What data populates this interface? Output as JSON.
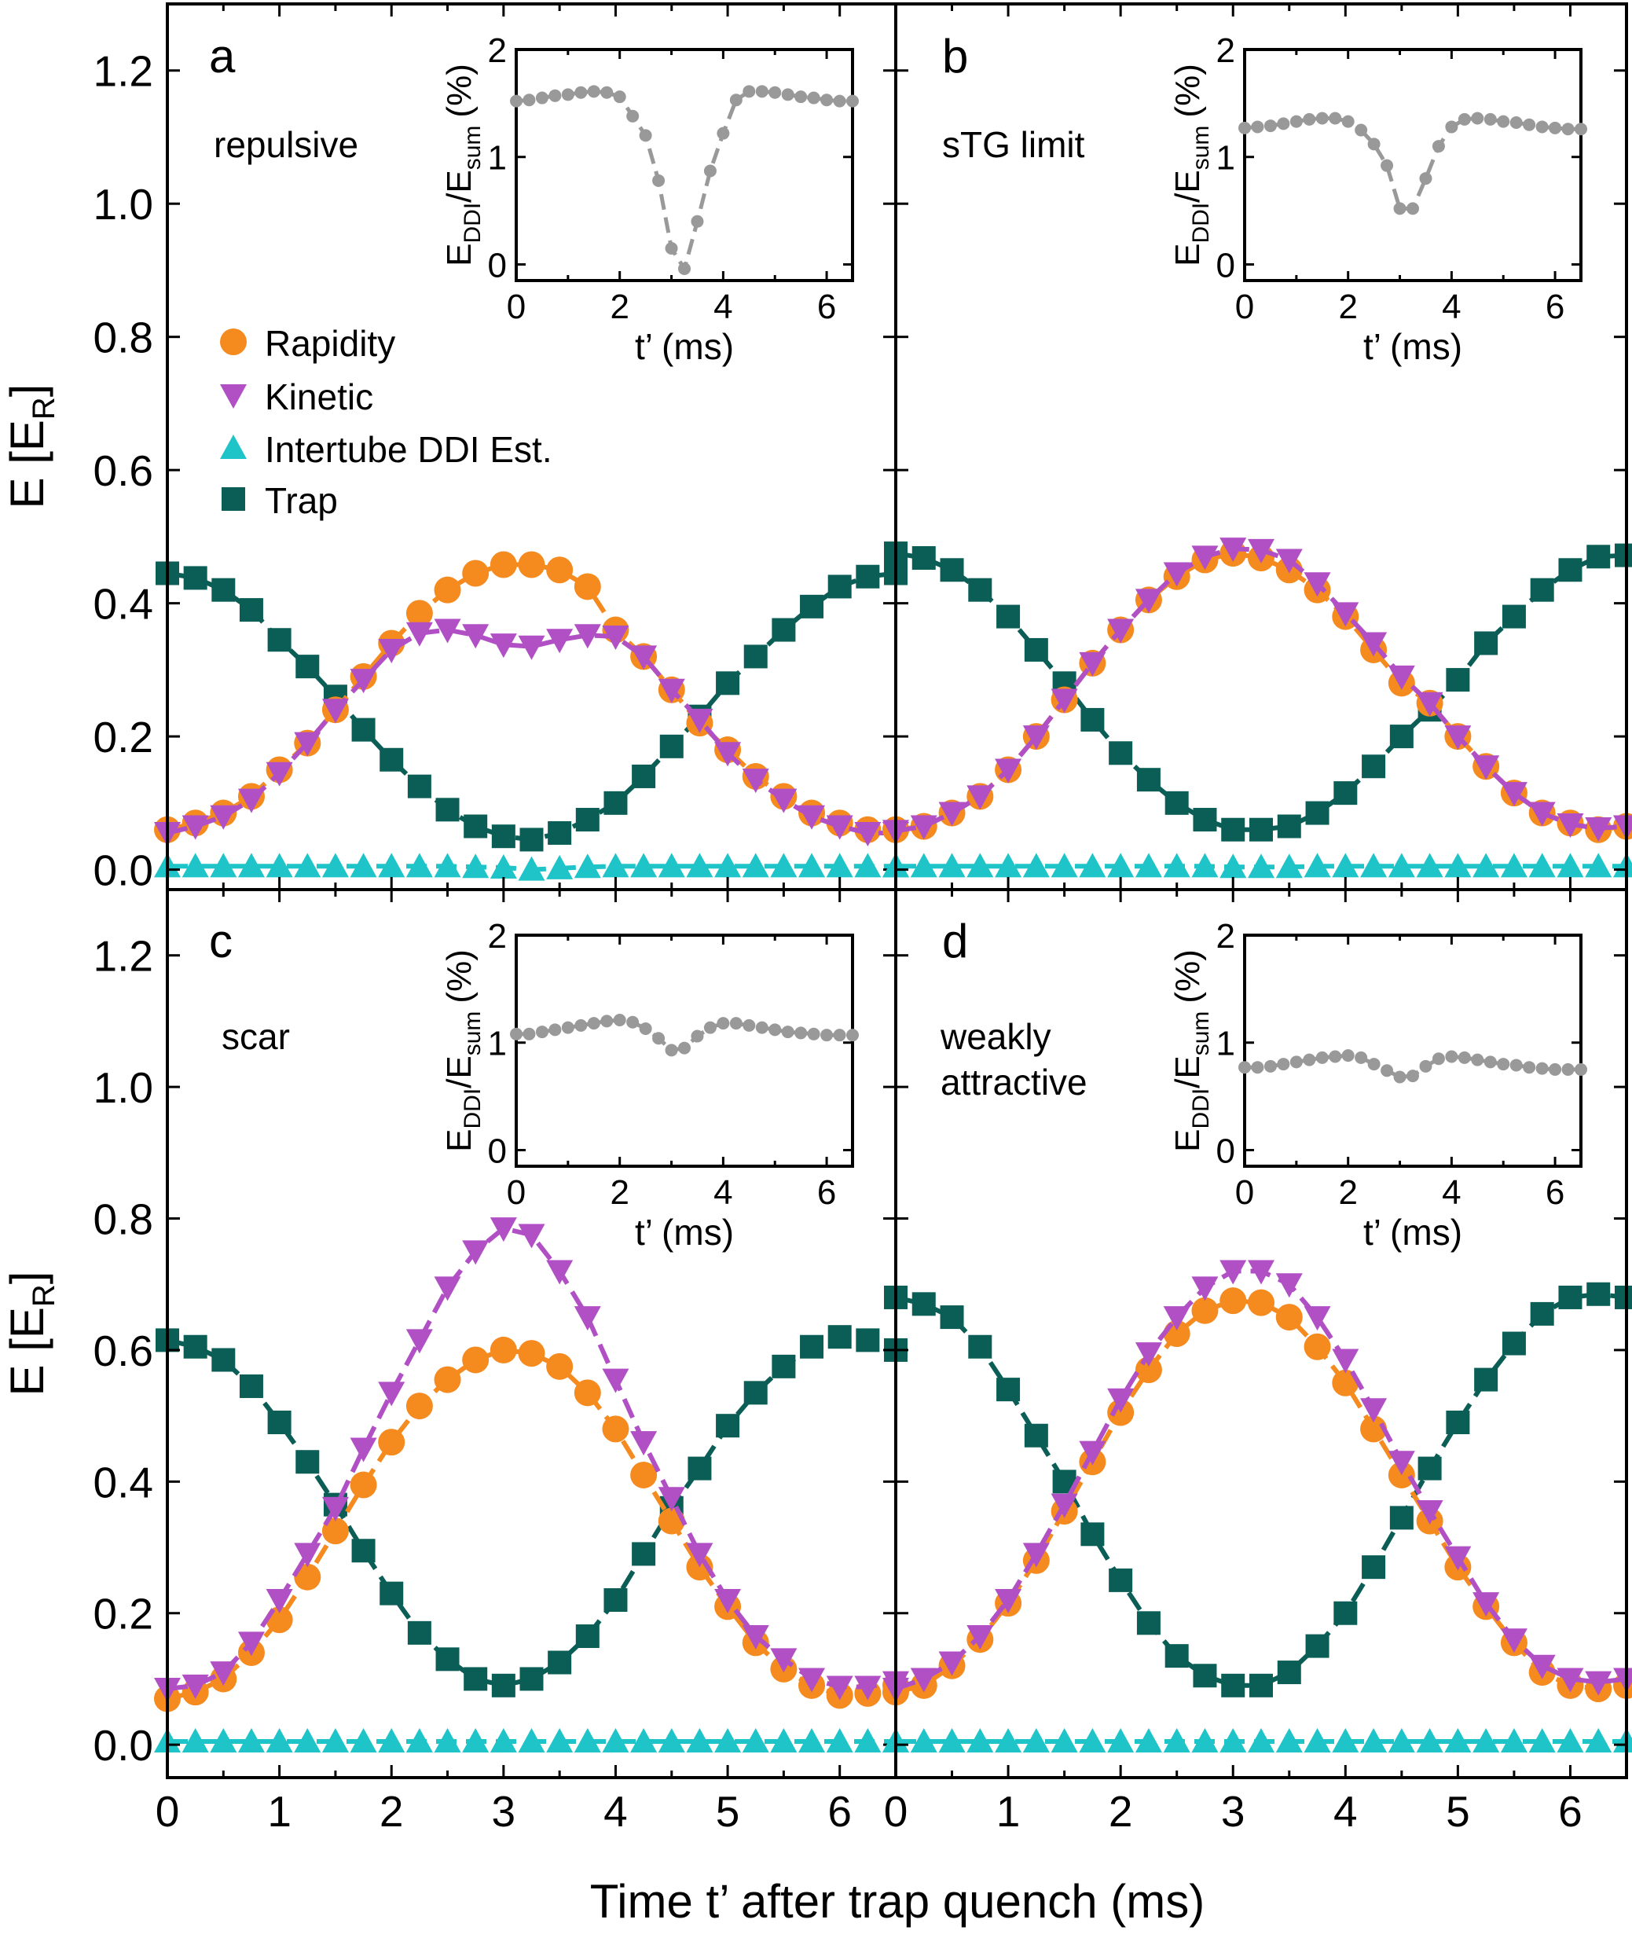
{
  "figure": {
    "xlabel": "Time t’ after trap quench (ms)",
    "ylabel_main": "E",
    "ylabel_unit": "E",
    "ylabel_unit_sub": "R",
    "inset_ylabel_num": "E",
    "inset_ylabel_num_sub": "DDI",
    "inset_ylabel_den": "/E",
    "inset_ylabel_den_sub": "sum",
    "inset_ylabel_pct": "(%)",
    "inset_xlabel": "t’ (ms)"
  },
  "colors": {
    "rapidity": "#f58a1f",
    "kinetic": "#b14fc5",
    "ddi": "#1fc4c8",
    "trap": "#0b5e56",
    "inset": "#999999"
  },
  "legend": [
    {
      "key": "rapidity",
      "label": "Rapidity",
      "marker": "circle"
    },
    {
      "key": "kinetic",
      "label": "Kinetic",
      "marker": "triangle-down"
    },
    {
      "key": "ddi",
      "label": "Intertube DDI Est.",
      "marker": "triangle-up"
    },
    {
      "key": "trap",
      "label": "Trap",
      "marker": "square"
    }
  ],
  "chart_data": [
    {
      "type": "line",
      "panel": "a",
      "title": "repulsive",
      "xlim": [
        0,
        6.5
      ],
      "ylim": [
        -0.03,
        1.3
      ],
      "xticks": [
        0,
        1,
        2,
        3,
        4,
        5,
        6
      ],
      "yticks": [
        "0.0",
        "0.2",
        "0.4",
        "0.6",
        "0.8",
        "1.0",
        "1.2"
      ],
      "x": [
        0,
        0.25,
        0.5,
        0.75,
        1.0,
        1.25,
        1.5,
        1.75,
        2.0,
        2.25,
        2.5,
        2.75,
        3.0,
        3.25,
        3.5,
        3.75,
        4.0,
        4.25,
        4.5,
        4.75,
        5.0,
        5.25,
        5.5,
        5.75,
        6.0,
        6.25,
        6.5
      ],
      "series": [
        {
          "name": "Rapidity",
          "key": "rapidity",
          "values": [
            0.06,
            0.07,
            0.085,
            0.11,
            0.15,
            0.19,
            0.24,
            0.29,
            0.34,
            0.385,
            0.42,
            0.445,
            0.458,
            0.458,
            0.45,
            0.425,
            0.36,
            0.32,
            0.27,
            0.22,
            0.18,
            0.14,
            0.11,
            0.085,
            0.07,
            0.06,
            0.06
          ]
        },
        {
          "name": "Kinetic",
          "key": "kinetic",
          "values": [
            0.055,
            0.065,
            0.08,
            0.105,
            0.145,
            0.19,
            0.24,
            0.285,
            0.33,
            0.355,
            0.36,
            0.352,
            0.338,
            0.335,
            0.345,
            0.352,
            0.35,
            0.32,
            0.27,
            0.225,
            0.175,
            0.135,
            0.105,
            0.08,
            0.065,
            0.055,
            0.055
          ]
        },
        {
          "name": "Intertube DDI Est.",
          "key": "ddi",
          "values": [
            0.005,
            0.005,
            0.005,
            0.005,
            0.005,
            0.005,
            0.005,
            0.005,
            0.005,
            0.005,
            0.005,
            0.004,
            0.003,
            0.0,
            0.002,
            0.004,
            0.005,
            0.005,
            0.005,
            0.005,
            0.005,
            0.005,
            0.005,
            0.005,
            0.005,
            0.005,
            0.005
          ]
        },
        {
          "name": "Trap",
          "key": "trap",
          "values": [
            0.445,
            0.438,
            0.42,
            0.39,
            0.345,
            0.305,
            0.26,
            0.21,
            0.165,
            0.125,
            0.09,
            0.065,
            0.05,
            0.045,
            0.055,
            0.075,
            0.1,
            0.14,
            0.185,
            0.23,
            0.28,
            0.32,
            0.36,
            0.395,
            0.425,
            0.44,
            0.445
          ]
        }
      ],
      "inset": {
        "xlim": [
          0,
          6.5
        ],
        "ylim": [
          -0.15,
          2.0
        ],
        "xticks": [
          0,
          2,
          4,
          6
        ],
        "yticks": [
          0,
          1,
          2
        ],
        "x": [
          0,
          0.25,
          0.5,
          0.75,
          1.0,
          1.25,
          1.5,
          1.75,
          2.0,
          2.25,
          2.5,
          2.75,
          3.0,
          3.25,
          3.5,
          3.75,
          4.0,
          4.25,
          4.5,
          4.75,
          5.0,
          5.25,
          5.5,
          5.75,
          6.0,
          6.25,
          6.5
        ],
        "values": [
          1.52,
          1.53,
          1.55,
          1.57,
          1.58,
          1.6,
          1.61,
          1.6,
          1.56,
          1.38,
          1.2,
          0.78,
          0.15,
          -0.04,
          0.4,
          0.87,
          1.22,
          1.53,
          1.61,
          1.61,
          1.6,
          1.58,
          1.56,
          1.55,
          1.53,
          1.52,
          1.52
        ]
      }
    },
    {
      "type": "line",
      "panel": "b",
      "title": "sTG limit",
      "xlim": [
        0,
        6.5
      ],
      "ylim": [
        -0.03,
        1.3
      ],
      "xticks": [
        0,
        1,
        2,
        3,
        4,
        5,
        6
      ],
      "x": [
        0,
        0.25,
        0.5,
        0.75,
        1.0,
        1.25,
        1.5,
        1.75,
        2.0,
        2.25,
        2.5,
        2.75,
        3.0,
        3.25,
        3.5,
        3.75,
        4.0,
        4.25,
        4.5,
        4.75,
        5.0,
        5.25,
        5.5,
        5.75,
        6.0,
        6.25,
        6.5
      ],
      "series": [
        {
          "name": "Rapidity",
          "key": "rapidity",
          "values": [
            0.06,
            0.065,
            0.085,
            0.11,
            0.15,
            0.2,
            0.255,
            0.31,
            0.36,
            0.405,
            0.44,
            0.465,
            0.475,
            0.468,
            0.45,
            0.42,
            0.38,
            0.33,
            0.28,
            0.25,
            0.2,
            0.155,
            0.115,
            0.085,
            0.07,
            0.06,
            0.065
          ]
        },
        {
          "name": "Kinetic",
          "key": "kinetic",
          "values": [
            0.058,
            0.065,
            0.085,
            0.11,
            0.15,
            0.2,
            0.255,
            0.31,
            0.36,
            0.405,
            0.445,
            0.47,
            0.482,
            0.48,
            0.465,
            0.43,
            0.385,
            0.34,
            0.29,
            0.25,
            0.2,
            0.155,
            0.115,
            0.085,
            0.068,
            0.062,
            0.065
          ]
        },
        {
          "name": "Intertube DDI Est.",
          "key": "ddi",
          "values": [
            0.005,
            0.005,
            0.005,
            0.005,
            0.005,
            0.005,
            0.005,
            0.005,
            0.005,
            0.005,
            0.005,
            0.005,
            0.004,
            0.004,
            0.004,
            0.005,
            0.005,
            0.005,
            0.005,
            0.005,
            0.005,
            0.005,
            0.005,
            0.005,
            0.005,
            0.005,
            0.005
          ]
        },
        {
          "name": "Trap",
          "key": "trap",
          "values": [
            0.475,
            0.468,
            0.45,
            0.42,
            0.38,
            0.33,
            0.28,
            0.225,
            0.175,
            0.135,
            0.1,
            0.075,
            0.06,
            0.06,
            0.065,
            0.085,
            0.115,
            0.155,
            0.2,
            0.24,
            0.285,
            0.34,
            0.38,
            0.42,
            0.45,
            0.47,
            0.472
          ]
        }
      ],
      "inset": {
        "xlim": [
          0,
          6.5
        ],
        "ylim": [
          -0.15,
          2.0
        ],
        "xticks": [
          0,
          2,
          4,
          6
        ],
        "yticks": [
          0,
          1,
          2
        ],
        "x": [
          0,
          0.25,
          0.5,
          0.75,
          1.0,
          1.25,
          1.5,
          1.75,
          2.0,
          2.25,
          2.5,
          2.75,
          3.0,
          3.25,
          3.5,
          3.75,
          4.0,
          4.25,
          4.5,
          4.75,
          5.0,
          5.25,
          5.5,
          5.75,
          6.0,
          6.25,
          6.5
        ],
        "values": [
          1.27,
          1.28,
          1.29,
          1.31,
          1.33,
          1.35,
          1.36,
          1.36,
          1.33,
          1.25,
          1.12,
          0.92,
          0.52,
          0.52,
          0.8,
          1.1,
          1.28,
          1.35,
          1.36,
          1.35,
          1.33,
          1.32,
          1.3,
          1.28,
          1.27,
          1.26,
          1.26
        ]
      }
    },
    {
      "type": "line",
      "panel": "c",
      "title": "scar",
      "xlim": [
        0,
        6.5
      ],
      "ylim": [
        -0.05,
        1.3
      ],
      "xticks": [
        0,
        1,
        2,
        3,
        4,
        5,
        6
      ],
      "yticks": [
        "0.0",
        "0.2",
        "0.4",
        "0.6",
        "0.8",
        "1.0",
        "1.2"
      ],
      "x": [
        0,
        0.25,
        0.5,
        0.75,
        1.0,
        1.25,
        1.5,
        1.75,
        2.0,
        2.25,
        2.5,
        2.75,
        3.0,
        3.25,
        3.5,
        3.75,
        4.0,
        4.25,
        4.5,
        4.75,
        5.0,
        5.25,
        5.5,
        5.75,
        6.0,
        6.25,
        6.5
      ],
      "series": [
        {
          "name": "Rapidity",
          "key": "rapidity",
          "values": [
            0.07,
            0.08,
            0.1,
            0.14,
            0.19,
            0.255,
            0.325,
            0.395,
            0.46,
            0.515,
            0.555,
            0.585,
            0.6,
            0.595,
            0.575,
            0.535,
            0.48,
            0.41,
            0.34,
            0.27,
            0.21,
            0.155,
            0.115,
            0.09,
            0.075,
            0.078,
            0.09
          ]
        },
        {
          "name": "Kinetic",
          "key": "kinetic",
          "values": [
            0.085,
            0.09,
            0.11,
            0.155,
            0.22,
            0.29,
            0.36,
            0.45,
            0.535,
            0.615,
            0.695,
            0.75,
            0.785,
            0.775,
            0.72,
            0.65,
            0.555,
            0.46,
            0.375,
            0.29,
            0.22,
            0.165,
            0.13,
            0.1,
            0.088,
            0.088,
            0.095
          ]
        },
        {
          "name": "Intertube DDI Est.",
          "key": "ddi",
          "values": [
            0.005,
            0.005,
            0.005,
            0.005,
            0.005,
            0.005,
            0.005,
            0.005,
            0.005,
            0.005,
            0.005,
            0.005,
            0.005,
            0.005,
            0.005,
            0.005,
            0.005,
            0.005,
            0.005,
            0.005,
            0.005,
            0.005,
            0.005,
            0.005,
            0.005,
            0.005,
            0.005
          ]
        },
        {
          "name": "Trap",
          "key": "trap",
          "values": [
            0.615,
            0.605,
            0.585,
            0.545,
            0.49,
            0.43,
            0.365,
            0.295,
            0.23,
            0.17,
            0.13,
            0.1,
            0.09,
            0.1,
            0.125,
            0.165,
            0.22,
            0.29,
            0.36,
            0.42,
            0.485,
            0.535,
            0.575,
            0.605,
            0.62,
            0.615,
            0.6
          ]
        }
      ],
      "inset": {
        "xlim": [
          0,
          6.5
        ],
        "ylim": [
          -0.15,
          2.0
        ],
        "xticks": [
          0,
          2,
          4,
          6
        ],
        "yticks": [
          0,
          1,
          2
        ],
        "x": [
          0,
          0.25,
          0.5,
          0.75,
          1.0,
          1.25,
          1.5,
          1.75,
          2.0,
          2.25,
          2.5,
          2.75,
          3.0,
          3.25,
          3.5,
          3.75,
          4.0,
          4.25,
          4.5,
          4.75,
          5.0,
          5.25,
          5.5,
          5.75,
          6.0,
          6.25,
          6.5
        ],
        "values": [
          1.08,
          1.08,
          1.1,
          1.12,
          1.14,
          1.16,
          1.18,
          1.2,
          1.21,
          1.19,
          1.13,
          1.04,
          0.93,
          0.95,
          1.06,
          1.14,
          1.18,
          1.18,
          1.16,
          1.14,
          1.12,
          1.1,
          1.09,
          1.08,
          1.07,
          1.07,
          1.07
        ]
      }
    },
    {
      "type": "line",
      "panel": "d",
      "title": "weakly attractive",
      "title_lines": [
        "weakly",
        "attractive"
      ],
      "xlim": [
        0,
        6.5
      ],
      "ylim": [
        -0.05,
        1.3
      ],
      "xticks": [
        0,
        1,
        2,
        3,
        4,
        5,
        6
      ],
      "x": [
        0,
        0.25,
        0.5,
        0.75,
        1.0,
        1.25,
        1.5,
        1.75,
        2.0,
        2.25,
        2.5,
        2.75,
        3.0,
        3.25,
        3.5,
        3.75,
        4.0,
        4.25,
        4.5,
        4.75,
        5.0,
        5.25,
        5.5,
        5.75,
        6.0,
        6.25,
        6.5
      ],
      "series": [
        {
          "name": "Rapidity",
          "key": "rapidity",
          "values": [
            0.08,
            0.09,
            0.12,
            0.16,
            0.215,
            0.28,
            0.355,
            0.43,
            0.505,
            0.57,
            0.625,
            0.66,
            0.675,
            0.672,
            0.65,
            0.605,
            0.55,
            0.48,
            0.41,
            0.34,
            0.27,
            0.21,
            0.155,
            0.11,
            0.09,
            0.085,
            0.09
          ]
        },
        {
          "name": "Kinetic",
          "key": "kinetic",
          "values": [
            0.085,
            0.1,
            0.125,
            0.165,
            0.22,
            0.29,
            0.365,
            0.445,
            0.525,
            0.595,
            0.65,
            0.695,
            0.72,
            0.72,
            0.7,
            0.65,
            0.585,
            0.51,
            0.43,
            0.355,
            0.285,
            0.215,
            0.16,
            0.12,
            0.1,
            0.095,
            0.1
          ]
        },
        {
          "name": "Intertube DDI Est.",
          "key": "ddi",
          "values": [
            0.005,
            0.005,
            0.005,
            0.005,
            0.005,
            0.005,
            0.005,
            0.005,
            0.005,
            0.005,
            0.005,
            0.005,
            0.005,
            0.005,
            0.005,
            0.005,
            0.005,
            0.005,
            0.005,
            0.005,
            0.005,
            0.005,
            0.005,
            0.005,
            0.005,
            0.005,
            0.005
          ]
        },
        {
          "name": "Trap",
          "key": "trap",
          "values": [
            0.68,
            0.67,
            0.65,
            0.605,
            0.54,
            0.47,
            0.4,
            0.32,
            0.25,
            0.185,
            0.135,
            0.105,
            0.09,
            0.09,
            0.11,
            0.15,
            0.2,
            0.27,
            0.345,
            0.42,
            0.49,
            0.555,
            0.61,
            0.655,
            0.68,
            0.685,
            0.68
          ]
        }
      ],
      "inset": {
        "xlim": [
          0,
          6.5
        ],
        "ylim": [
          -0.15,
          2.0
        ],
        "xticks": [
          0,
          2,
          4,
          6
        ],
        "yticks": [
          0,
          1,
          2
        ],
        "x": [
          0,
          0.25,
          0.5,
          0.75,
          1.0,
          1.25,
          1.5,
          1.75,
          2.0,
          2.25,
          2.5,
          2.75,
          3.0,
          3.25,
          3.5,
          3.75,
          4.0,
          4.25,
          4.5,
          4.75,
          5.0,
          5.25,
          5.5,
          5.75,
          6.0,
          6.25,
          6.5
        ],
        "values": [
          0.77,
          0.77,
          0.78,
          0.8,
          0.82,
          0.84,
          0.86,
          0.87,
          0.88,
          0.86,
          0.8,
          0.74,
          0.68,
          0.69,
          0.78,
          0.85,
          0.87,
          0.86,
          0.84,
          0.82,
          0.8,
          0.79,
          0.77,
          0.76,
          0.75,
          0.75,
          0.75
        ]
      }
    }
  ]
}
